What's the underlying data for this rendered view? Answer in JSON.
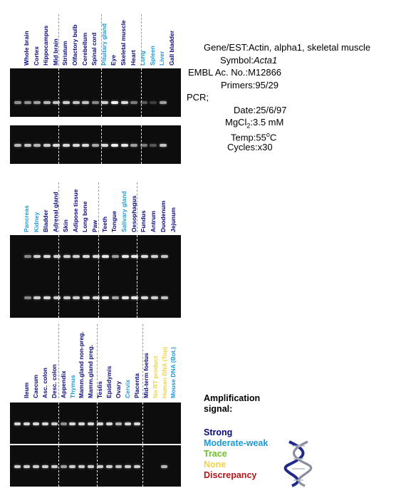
{
  "colors": {
    "strong": "#0a0a7a",
    "moderate": "#1a9ad6",
    "trace": "#6cbf2a",
    "none": "#f0d24a",
    "discrepancy": "#b01818",
    "gel": "#0d0d0d",
    "band": "#ffffff"
  },
  "panels": [
    {
      "id": "panel-1",
      "lanes": [
        {
          "label": "Whole brain",
          "signal": "strong",
          "row1": 0.55,
          "row2": 0.7
        },
        {
          "label": "Cortex",
          "signal": "strong",
          "row1": 0.55,
          "row2": 0.75
        },
        {
          "label": "Hippocampus",
          "signal": "strong",
          "row1": 0.6,
          "row2": 0.7
        },
        {
          "label": "Mid brain",
          "signal": "strong",
          "row1": 0.7,
          "row2": 0.8
        },
        {
          "label": "Striatum",
          "signal": "strong",
          "row1": 0.75,
          "row2": 0.85
        },
        {
          "label": "Olfactory bulb",
          "signal": "strong",
          "row1": 0.8,
          "row2": 0.85
        },
        {
          "label": "Cerebellum",
          "signal": "strong",
          "row1": 0.75,
          "row2": 0.85
        },
        {
          "label": "Spinal cord",
          "signal": "strong",
          "row1": 0.75,
          "row2": 0.85
        },
        {
          "label": "Pituitary gland",
          "signal": "moderate",
          "row1": 0.5,
          "row2": 0.65
        },
        {
          "label": "Eye",
          "signal": "strong",
          "row1": 0.8,
          "row2": 0.85
        },
        {
          "label": "Skeletal muscle",
          "signal": "strong",
          "row1": 0.95,
          "row2": 0.95
        },
        {
          "label": "Heart",
          "signal": "strong",
          "row1": 0.85,
          "row2": 0.9
        },
        {
          "label": "Lung",
          "signal": "moderate",
          "row1": 0.45,
          "row2": 0.6
        },
        {
          "label": "Spleen",
          "signal": "moderate",
          "row1": 0.3,
          "row2": 0.45
        },
        {
          "label": "Liver",
          "signal": "moderate",
          "row1": 0.2,
          "row2": 0.3
        },
        {
          "label": "Gall bladder",
          "signal": "strong",
          "row1": 0.6,
          "row2": 0.75
        }
      ]
    },
    {
      "id": "panel-2",
      "lanes": [
        {
          "label": "Pancreas",
          "signal": "moderate",
          "row1": 0.0,
          "row2": 0.0
        },
        {
          "label": "Kidney",
          "signal": "moderate",
          "row1": 0.5,
          "row2": 0.5
        },
        {
          "label": "Bladder",
          "signal": "strong",
          "row1": 0.8,
          "row2": 0.8
        },
        {
          "label": "Adrenal gland",
          "signal": "strong",
          "row1": 0.85,
          "row2": 0.85
        },
        {
          "label": "Skin",
          "signal": "strong",
          "row1": 0.8,
          "row2": 0.8
        },
        {
          "label": "Adipose tissue",
          "signal": "strong",
          "row1": 0.8,
          "row2": 0.8
        },
        {
          "label": "Long bone",
          "signal": "strong",
          "row1": 0.8,
          "row2": 0.8
        },
        {
          "label": "Paw",
          "signal": "strong",
          "row1": 0.85,
          "row2": 0.85
        },
        {
          "label": "Teeth",
          "signal": "strong",
          "row1": 0.85,
          "row2": 0.85
        },
        {
          "label": "Tongue",
          "signal": "strong",
          "row1": 0.9,
          "row2": 0.9
        },
        {
          "label": "Salivary gland",
          "signal": "moderate",
          "row1": 0.6,
          "row2": 0.65
        },
        {
          "label": "Oesophagus",
          "signal": "strong",
          "row1": 0.9,
          "row2": 0.9
        },
        {
          "label": "Fundus",
          "signal": "strong",
          "row1": 0.9,
          "row2": 0.9
        },
        {
          "label": "Antrum",
          "signal": "strong",
          "row1": 0.85,
          "row2": 0.85
        },
        {
          "label": "Duodenum",
          "signal": "strong",
          "row1": 0.8,
          "row2": 0.8
        },
        {
          "label": "Jejunum",
          "signal": "strong",
          "row1": 0.75,
          "row2": 0.75
        }
      ]
    },
    {
      "id": "panel-3",
      "lanes": [
        {
          "label": "Ileum",
          "signal": "strong",
          "row1": 0.85,
          "row2": 0.8
        },
        {
          "label": "Caecum",
          "signal": "strong",
          "row1": 0.85,
          "row2": 0.8
        },
        {
          "label": "Asc. colon",
          "signal": "strong",
          "row1": 0.85,
          "row2": 0.8
        },
        {
          "label": "Desc. colon",
          "signal": "strong",
          "row1": 0.85,
          "row2": 0.8
        },
        {
          "label": "Appendix",
          "signal": "strong",
          "row1": 0.8,
          "row2": 0.8
        },
        {
          "label": "Thymus",
          "signal": "moderate",
          "row1": 0.55,
          "row2": 0.6
        },
        {
          "label": "Mamm.gland non-preg.",
          "signal": "strong",
          "row1": 0.85,
          "row2": 0.8
        },
        {
          "label": "Mamm.gland preg.",
          "signal": "strong",
          "row1": 0.85,
          "row2": 0.8
        },
        {
          "label": "Testis",
          "signal": "strong",
          "row1": 0.85,
          "row2": 0.8
        },
        {
          "label": "Epididymis",
          "signal": "strong",
          "row1": 0.85,
          "row2": 0.8
        },
        {
          "label": "Ovary",
          "signal": "strong",
          "row1": 0.85,
          "row2": 0.8
        },
        {
          "label": "Cervix",
          "signal": "moderate",
          "row1": 0.7,
          "row2": 0.75
        },
        {
          "label": "Placenta",
          "signal": "strong",
          "row1": 0.85,
          "row2": 0.8
        },
        {
          "label": "Mid-term foetus",
          "signal": "strong",
          "row1": 0.85,
          "row2": 0.8
        },
        {
          "label": "No RT product",
          "signal": "none",
          "row1": 0.0,
          "row2": 0.0
        },
        {
          "label": "Human DNA (Top)",
          "signal": "none",
          "row1": 0.0,
          "row2": 0.0
        },
        {
          "label": "Mouse DNA (Bot.)",
          "signal": "moderate",
          "row1": 0.0,
          "row2": 0.7
        }
      ]
    }
  ],
  "info": {
    "gene_key": "Gene/EST:",
    "gene_val": "Actin, alpha1, skeletal muscle",
    "symbol_key": "Symbol:",
    "symbol_val": "Acta1",
    "embl_key": "EMBL Ac. No.:",
    "embl_val": "M12866",
    "primers_key": "Primers:",
    "primers_val": "95/29",
    "pcr": "PCR;",
    "date_key": "Date:",
    "date_val": "25/6/97",
    "mgcl_key": "MgCl",
    "mgcl_sub": "2",
    "mgcl_colon": ":",
    "mgcl_val": "3.5 mM",
    "temp_key": "Temp:",
    "temp_num": "55",
    "temp_sup": "o",
    "temp_unit": "C",
    "cycles_key": "Cycles:",
    "cycles_val": "x30"
  },
  "legend": {
    "title_line1": "Amplification",
    "title_line2": "signal:",
    "strong": "Strong",
    "moderate": "Moderate-weak",
    "trace": "Trace",
    "none": "None",
    "discrepancy": "Discrepancy"
  }
}
